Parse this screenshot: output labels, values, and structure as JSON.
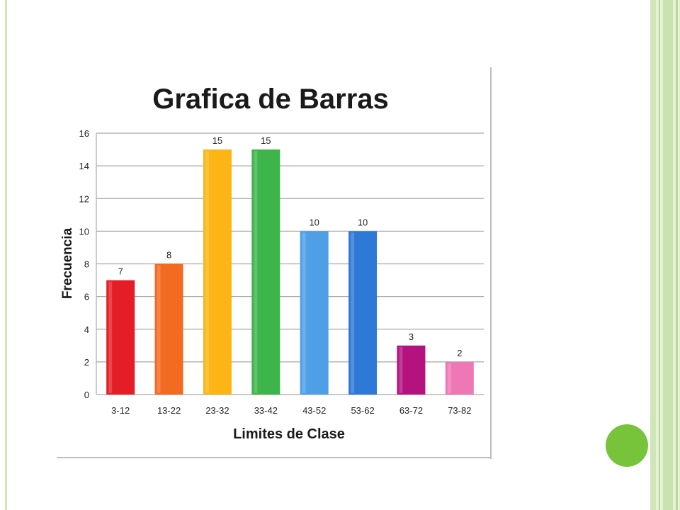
{
  "chart_data": {
    "type": "bar",
    "title": "Grafica de Barras",
    "xlabel": "Limites de Clase",
    "ylabel": "Frecuencia",
    "categories": [
      "3-12",
      "13-22",
      "23-32",
      "33-42",
      "43-52",
      "53-62",
      "63-72",
      "73-82"
    ],
    "values": [
      7,
      8,
      15,
      15,
      10,
      10,
      3,
      2
    ],
    "ylim": [
      0,
      16
    ],
    "yticks": [
      0,
      2,
      4,
      6,
      8,
      10,
      12,
      14,
      16
    ],
    "grid": true,
    "legend": "none",
    "colors": [
      "#e41e26",
      "#f36a21",
      "#fdb515",
      "#3db54a",
      "#4f9fe6",
      "#2e78d6",
      "#b4127f",
      "#ee78b6"
    ]
  },
  "decor": {
    "frame_color": "#cfe8b4",
    "dot_color": "#77c43a"
  }
}
